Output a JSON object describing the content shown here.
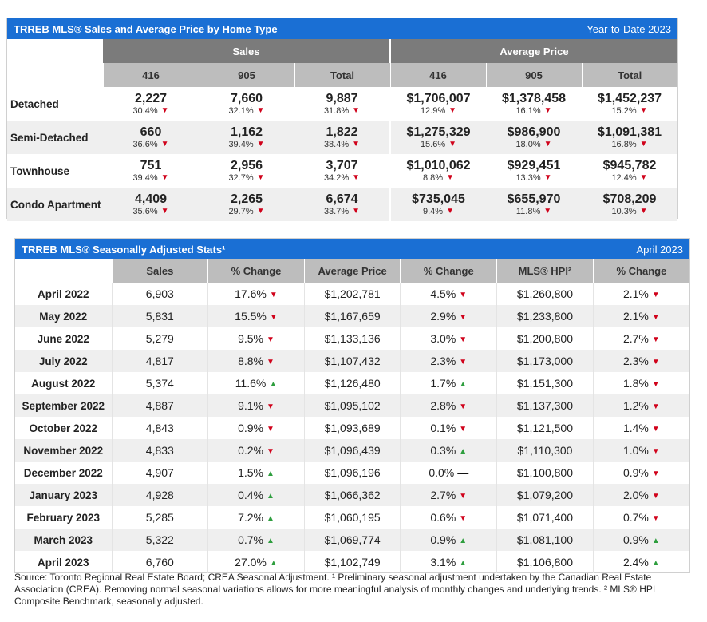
{
  "table1": {
    "title": "TRREB MLS® Sales and Average Price by Home Type",
    "period": "Year-to-Date 2023",
    "group_sales": "Sales",
    "group_price": "Average Price",
    "sub_headers": [
      "416",
      "905",
      "Total",
      "416",
      "905",
      "Total"
    ],
    "rows": [
      {
        "label": "Detached",
        "cells": [
          {
            "v": "2,227",
            "p": "30.4%",
            "d": "down"
          },
          {
            "v": "7,660",
            "p": "32.1%",
            "d": "down"
          },
          {
            "v": "9,887",
            "p": "31.8%",
            "d": "down"
          },
          {
            "v": "$1,706,007",
            "p": "12.9%",
            "d": "down"
          },
          {
            "v": "$1,378,458",
            "p": "16.1%",
            "d": "down"
          },
          {
            "v": "$1,452,237",
            "p": "15.2%",
            "d": "down"
          }
        ]
      },
      {
        "label": "Semi-Detached",
        "cells": [
          {
            "v": "660",
            "p": "36.6%",
            "d": "down"
          },
          {
            "v": "1,162",
            "p": "39.4%",
            "d": "down"
          },
          {
            "v": "1,822",
            "p": "38.4%",
            "d": "down"
          },
          {
            "v": "$1,275,329",
            "p": "15.6%",
            "d": "down"
          },
          {
            "v": "$986,900",
            "p": "18.0%",
            "d": "down"
          },
          {
            "v": "$1,091,381",
            "p": "16.8%",
            "d": "down"
          }
        ]
      },
      {
        "label": "Townhouse",
        "cells": [
          {
            "v": "751",
            "p": "39.4%",
            "d": "down"
          },
          {
            "v": "2,956",
            "p": "32.7%",
            "d": "down"
          },
          {
            "v": "3,707",
            "p": "34.2%",
            "d": "down"
          },
          {
            "v": "$1,010,062",
            "p": "8.8%",
            "d": "down"
          },
          {
            "v": "$929,451",
            "p": "13.3%",
            "d": "down"
          },
          {
            "v": "$945,782",
            "p": "12.4%",
            "d": "down"
          }
        ]
      },
      {
        "label": "Condo Apartment",
        "cells": [
          {
            "v": "4,409",
            "p": "35.6%",
            "d": "down"
          },
          {
            "v": "2,265",
            "p": "29.7%",
            "d": "down"
          },
          {
            "v": "6,674",
            "p": "33.7%",
            "d": "down"
          },
          {
            "v": "$735,045",
            "p": "9.4%",
            "d": "down"
          },
          {
            "v": "$655,970",
            "p": "11.8%",
            "d": "down"
          },
          {
            "v": "$708,209",
            "p": "10.3%",
            "d": "down"
          }
        ]
      }
    ]
  },
  "table2": {
    "title": "TRREB MLS® Seasonally Adjusted Stats¹",
    "period": "April 2023",
    "headers": [
      "Sales",
      "% Change",
      "Average Price",
      "% Change",
      "MLS® HPI²",
      "% Change"
    ],
    "rows": [
      {
        "month": "April 2022",
        "sales": "6,903",
        "sales_chg": "17.6%",
        "sales_dir": "down",
        "price": "$1,202,781",
        "price_chg": "4.5%",
        "price_dir": "down",
        "hpi": "$1,260,800",
        "hpi_chg": "2.1%",
        "hpi_dir": "down"
      },
      {
        "month": "May 2022",
        "sales": "5,831",
        "sales_chg": "15.5%",
        "sales_dir": "down",
        "price": "$1,167,659",
        "price_chg": "2.9%",
        "price_dir": "down",
        "hpi": "$1,233,800",
        "hpi_chg": "2.1%",
        "hpi_dir": "down"
      },
      {
        "month": "June 2022",
        "sales": "5,279",
        "sales_chg": "9.5%",
        "sales_dir": "down",
        "price": "$1,133,136",
        "price_chg": "3.0%",
        "price_dir": "down",
        "hpi": "$1,200,800",
        "hpi_chg": "2.7%",
        "hpi_dir": "down"
      },
      {
        "month": "July 2022",
        "sales": "4,817",
        "sales_chg": "8.8%",
        "sales_dir": "down",
        "price": "$1,107,432",
        "price_chg": "2.3%",
        "price_dir": "down",
        "hpi": "$1,173,000",
        "hpi_chg": "2.3%",
        "hpi_dir": "down"
      },
      {
        "month": "August 2022",
        "sales": "5,374",
        "sales_chg": "11.6%",
        "sales_dir": "up",
        "price": "$1,126,480",
        "price_chg": "1.7%",
        "price_dir": "up",
        "hpi": "$1,151,300",
        "hpi_chg": "1.8%",
        "hpi_dir": "down"
      },
      {
        "month": "September 2022",
        "sales": "4,887",
        "sales_chg": "9.1%",
        "sales_dir": "down",
        "price": "$1,095,102",
        "price_chg": "2.8%",
        "price_dir": "down",
        "hpi": "$1,137,300",
        "hpi_chg": "1.2%",
        "hpi_dir": "down"
      },
      {
        "month": "October 2022",
        "sales": "4,843",
        "sales_chg": "0.9%",
        "sales_dir": "down",
        "price": "$1,093,689",
        "price_chg": "0.1%",
        "price_dir": "down",
        "hpi": "$1,121,500",
        "hpi_chg": "1.4%",
        "hpi_dir": "down"
      },
      {
        "month": "November 2022",
        "sales": "4,833",
        "sales_chg": "0.2%",
        "sales_dir": "down",
        "price": "$1,096,439",
        "price_chg": "0.3%",
        "price_dir": "up",
        "hpi": "$1,110,300",
        "hpi_chg": "1.0%",
        "hpi_dir": "down"
      },
      {
        "month": "December 2022",
        "sales": "4,907",
        "sales_chg": "1.5%",
        "sales_dir": "up",
        "price": "$1,096,196",
        "price_chg": "0.0%",
        "price_dir": "flat",
        "hpi": "$1,100,800",
        "hpi_chg": "0.9%",
        "hpi_dir": "down"
      },
      {
        "month": "January 2023",
        "sales": "4,928",
        "sales_chg": "0.4%",
        "sales_dir": "up",
        "price": "$1,066,362",
        "price_chg": "2.7%",
        "price_dir": "down",
        "hpi": "$1,079,200",
        "hpi_chg": "2.0%",
        "hpi_dir": "down"
      },
      {
        "month": "February 2023",
        "sales": "5,285",
        "sales_chg": "7.2%",
        "sales_dir": "up",
        "price": "$1,060,195",
        "price_chg": "0.6%",
        "price_dir": "down",
        "hpi": "$1,071,400",
        "hpi_chg": "0.7%",
        "hpi_dir": "down"
      },
      {
        "month": "March 2023",
        "sales": "5,322",
        "sales_chg": "0.7%",
        "sales_dir": "up",
        "price": "$1,069,774",
        "price_chg": "0.9%",
        "price_dir": "up",
        "hpi": "$1,081,100",
        "hpi_chg": "0.9%",
        "hpi_dir": "up"
      },
      {
        "month": "April 2023",
        "sales": "6,760",
        "sales_chg": "27.0%",
        "sales_dir": "up",
        "price": "$1,102,749",
        "price_chg": "3.1%",
        "price_dir": "up",
        "hpi": "$1,106,800",
        "hpi_chg": "2.4%",
        "hpi_dir": "up"
      }
    ]
  },
  "footnote": "Source: Toronto Regional Real Estate Board; CREA Seasonal Adjustment. ¹ Preliminary seasonal adjustment undertaken by the Canadian Real Estate Association (CREA).  Removing normal seasonal variations allows for more meaningful analysis of monthly changes and underlying trends. ² MLS® HPI Composite Benchmark, seasonally adjusted.",
  "colors": {
    "header_blue": "#1a6fd4",
    "group_gray": "#7b7b7b",
    "sub_gray": "#bdbdbd",
    "up_green": "#2e9e3e",
    "down_red": "#d0021b"
  }
}
